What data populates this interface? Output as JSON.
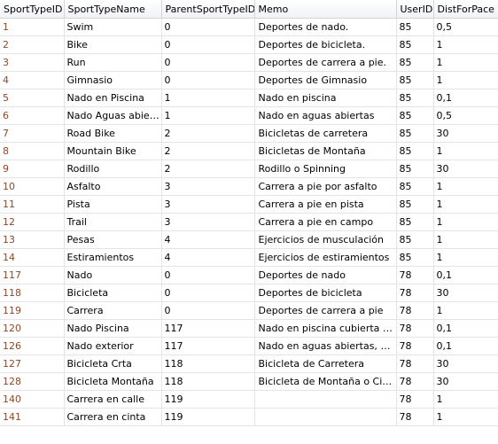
{
  "columns": [
    "SportTypeID",
    "SportTypeName",
    "ParentSportTypeID",
    "Memo",
    "UserID",
    "DistForPace"
  ],
  "rows": [
    [
      "1",
      "Swim",
      "0",
      "Deportes de nado.",
      "85",
      "0,5"
    ],
    [
      "2",
      "Bike",
      "0",
      "Deportes de bicicleta.",
      "85",
      "1"
    ],
    [
      "3",
      "Run",
      "0",
      "Deportes de carrera a pie.",
      "85",
      "1"
    ],
    [
      "4",
      "Gimnasio",
      "0",
      "Deportes de Gimnasio",
      "85",
      "1"
    ],
    [
      "5",
      "Nado en Piscina",
      "1",
      "Nado en piscina",
      "85",
      "0,1"
    ],
    [
      "6",
      "Nado Aguas abiertas",
      "1",
      "Nado en aguas abiertas",
      "85",
      "0,5"
    ],
    [
      "7",
      "Road Bike",
      "2",
      "Bicicletas de carretera",
      "85",
      "30"
    ],
    [
      "8",
      "Mountain Bike",
      "2",
      "Bicicletas de Montaña",
      "85",
      "1"
    ],
    [
      "9",
      "Rodillo",
      "2",
      "Rodillo o Spinning",
      "85",
      "30"
    ],
    [
      "10",
      "Asfalto",
      "3",
      "Carrera a pie por asfalto",
      "85",
      "1"
    ],
    [
      "11",
      "Pista",
      "3",
      "Carrera a pie en pista",
      "85",
      "1"
    ],
    [
      "12",
      "Trail",
      "3",
      "Carrera a pie en campo",
      "85",
      "1"
    ],
    [
      "13",
      "Pesas",
      "4",
      "Ejercicios de musculación",
      "85",
      "1"
    ],
    [
      "14",
      "Estiramientos",
      "4",
      "Ejercicios de estiramientos",
      "85",
      "1"
    ],
    [
      "117",
      "Nado",
      "0",
      "Deportes de nado",
      "78",
      "0,1"
    ],
    [
      "118",
      "Bicicleta",
      "0",
      "Deportes de bicicleta",
      "78",
      "30"
    ],
    [
      "119",
      "Carrera",
      "0",
      "Deportes de carrera a pie",
      "78",
      "1"
    ],
    [
      "120",
      "Nado Piscina",
      "117",
      "Nado en piscina cubierta o ai...",
      "78",
      "0,1"
    ],
    [
      "126",
      "Nado exterior",
      "117",
      "Nado en aguas abiertas, ma...",
      "78",
      "0,1"
    ],
    [
      "127",
      "Bicicleta Crta",
      "118",
      "Bicicleta de Carretera",
      "78",
      "30"
    ],
    [
      "128",
      "Bicicleta Montaña",
      "118",
      "Bicicleta de Montaña o Ciclocr...",
      "78",
      "30"
    ],
    [
      "140",
      "Carrera en calle",
      "119",
      "",
      "78",
      "1"
    ],
    [
      "141",
      "Carrera en cinta",
      "119",
      "",
      "78",
      "1"
    ]
  ]
}
